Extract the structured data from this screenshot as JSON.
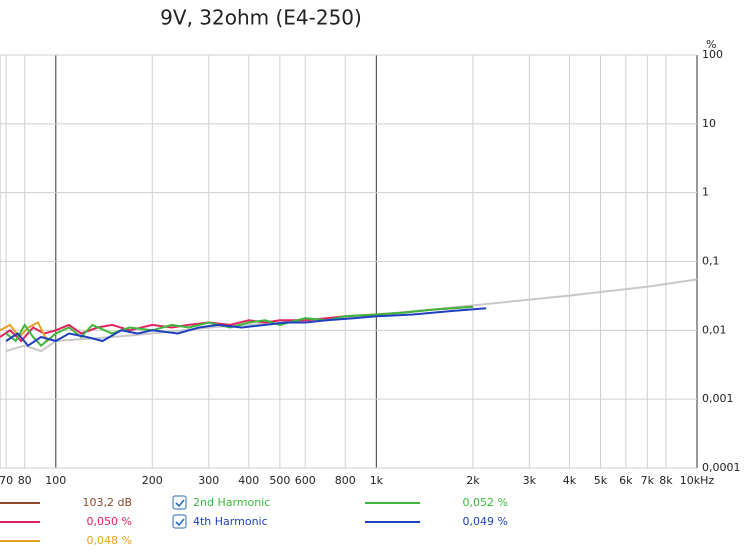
{
  "chart_data": {
    "type": "line",
    "title": "9V, 32ohm (E4-250)",
    "y_unit": "%",
    "xscale": "log",
    "yscale": "log",
    "grid": true,
    "xlim": [
      67,
      10000
    ],
    "ylim": [
      0.0001,
      100
    ],
    "xticks": [
      70,
      80,
      100,
      200,
      300,
      400,
      500,
      600,
      800,
      {
        "value": 1000,
        "label": "1k"
      },
      {
        "value": 2000,
        "label": "2k"
      },
      {
        "value": 3000,
        "label": "3k"
      },
      {
        "value": 4000,
        "label": "4k"
      },
      {
        "value": 5000,
        "label": "5k"
      },
      {
        "value": 6000,
        "label": "6k"
      },
      {
        "value": 7000,
        "label": "7k"
      },
      {
        "value": 8000,
        "label": "8k"
      },
      {
        "value": 10000,
        "label": "10kHz"
      }
    ],
    "yticks": [
      100,
      10,
      1,
      {
        "value": 0.1,
        "label": "0,1"
      },
      {
        "value": 0.01,
        "label": "0,01"
      },
      {
        "value": 0.001,
        "label": "0,001"
      },
      {
        "value": 0.0001,
        "label": "0,0001"
      }
    ],
    "series": [
      {
        "color": "#c8c8c8",
        "x": [
          70,
          80,
          90,
          100,
          150,
          200,
          300,
          500,
          700,
          1000,
          1500,
          2000,
          3000,
          4000,
          5000,
          7000,
          10000
        ],
        "values": [
          0.005,
          0.006,
          0.005,
          0.007,
          0.008,
          0.009,
          0.011,
          0.013,
          0.015,
          0.017,
          0.02,
          0.023,
          0.028,
          0.032,
          0.036,
          0.043,
          0.055
        ]
      },
      {
        "color": "#e0245e",
        "x": [
          67,
          72,
          78,
          85,
          92,
          100,
          110,
          120,
          135,
          150,
          170,
          200,
          230,
          260,
          300,
          350,
          400,
          450,
          500,
          600,
          700,
          800,
          1000,
          1200,
          1500,
          2000
        ],
        "values": [
          0.008,
          0.01,
          0.007,
          0.011,
          0.009,
          0.01,
          0.012,
          0.009,
          0.011,
          0.012,
          0.01,
          0.012,
          0.011,
          0.012,
          0.013,
          0.012,
          0.014,
          0.013,
          0.014,
          0.014,
          0.015,
          0.016,
          0.017,
          0.018,
          0.02,
          0.022
        ]
      },
      {
        "color": "#e8a020",
        "x": [
          67,
          72,
          77,
          82,
          88,
          94,
          100
        ],
        "values": [
          0.01,
          0.012,
          0.008,
          0.011,
          0.013,
          0.007,
          0.009
        ]
      },
      {
        "color": "#3cb83c",
        "x": [
          70,
          75,
          80,
          85,
          90,
          100,
          110,
          120,
          130,
          150,
          170,
          200,
          230,
          260,
          300,
          350,
          400,
          450,
          500,
          600,
          700,
          800,
          1000,
          1200,
          1500,
          2000
        ],
        "values": [
          0.009,
          0.007,
          0.012,
          0.008,
          0.006,
          0.009,
          0.011,
          0.008,
          0.012,
          0.009,
          0.011,
          0.01,
          0.012,
          0.011,
          0.013,
          0.011,
          0.013,
          0.014,
          0.012,
          0.015,
          0.014,
          0.016,
          0.017,
          0.018,
          0.02,
          0.022
        ]
      },
      {
        "color": "#2040c0",
        "x": [
          70,
          76,
          82,
          90,
          100,
          110,
          125,
          140,
          160,
          180,
          200,
          240,
          280,
          320,
          380,
          450,
          520,
          600,
          700,
          850,
          1000,
          1300,
          1700,
          2200
        ],
        "values": [
          0.007,
          0.009,
          0.006,
          0.008,
          0.007,
          0.009,
          0.008,
          0.007,
          0.01,
          0.009,
          0.01,
          0.009,
          0.011,
          0.012,
          0.011,
          0.012,
          0.013,
          0.013,
          0.014,
          0.015,
          0.016,
          0.017,
          0.019,
          0.021
        ]
      }
    ],
    "legend": [
      {
        "color": "#8b4a2b",
        "reading": "103,2 dB"
      },
      {
        "color": "#e0245e",
        "reading": "0,050 %"
      },
      {
        "color": "#e8a020",
        "reading": "0,048 %"
      },
      {
        "color": "#3cb83c",
        "label": "2nd Harmonic",
        "reading": "0,052 %"
      },
      {
        "color": "#2040c0",
        "label": "4th Harmonic",
        "reading": "0,049 %"
      }
    ]
  }
}
